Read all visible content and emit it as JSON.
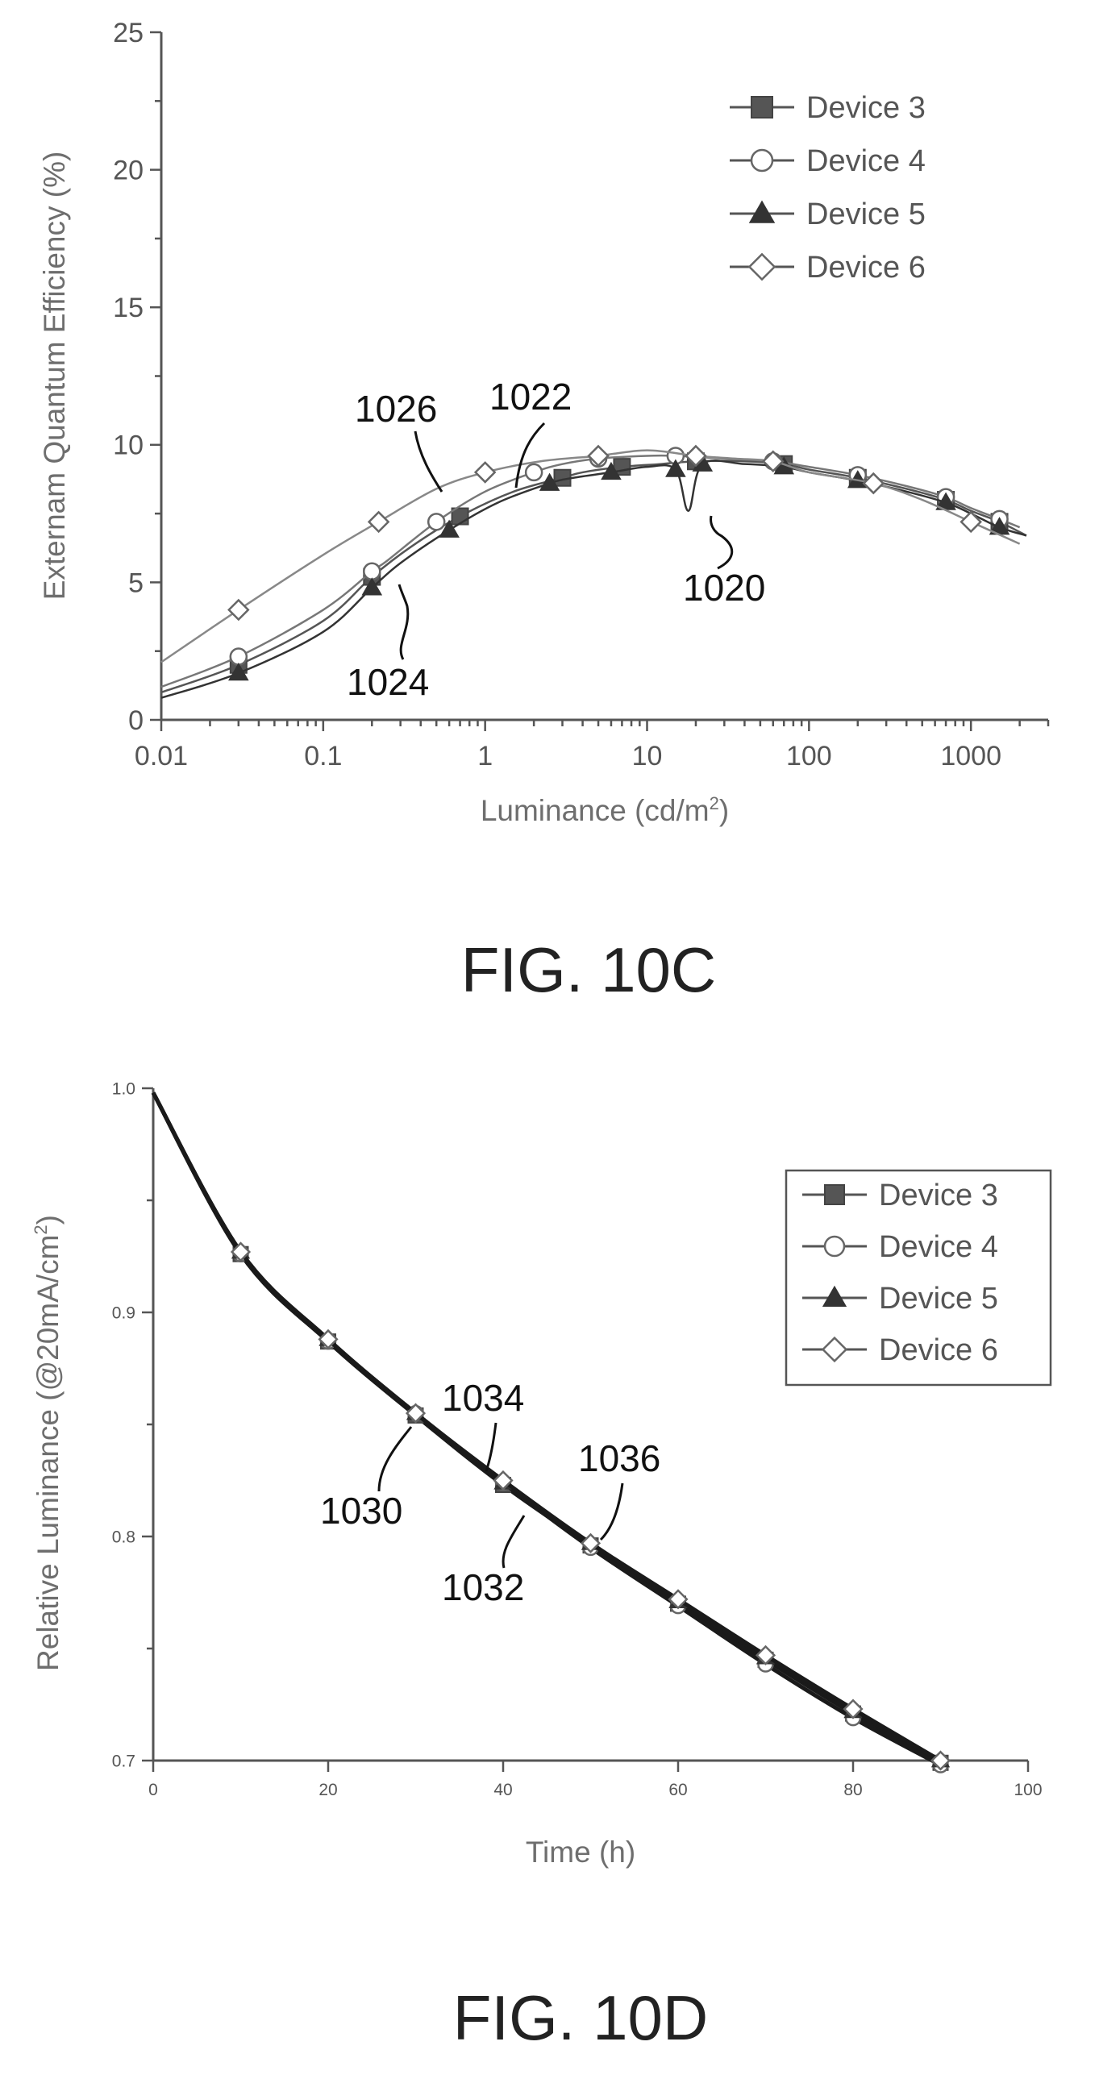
{
  "figures": [
    {
      "caption": "FIG. 10C",
      "chart_data": {
        "type": "line",
        "xlabel": "Luminance (cd/m",
        "xlabel_sup": "2",
        "xlabel_end": ")",
        "ylabel": "Externam Quantum Efficiency (%)",
        "x_scale": "log",
        "xlim": [
          0.01,
          3000
        ],
        "ylim": [
          0,
          25
        ],
        "x_ticks": [
          0.01,
          0.1,
          1,
          10,
          100,
          1000
        ],
        "x_tick_labels": [
          "0.01",
          "0.1",
          "1",
          "10",
          "100",
          "1000"
        ],
        "y_ticks": [
          0,
          5,
          10,
          15,
          20,
          25
        ],
        "y_tick_labels": [
          "0",
          "5",
          "10",
          "15",
          "20",
          "25"
        ],
        "legend_position": "top-right",
        "series": [
          {
            "name": "Device 3",
            "marker": "square-filled",
            "x": [
              0.01,
              0.03,
              0.1,
              0.2,
              0.35,
              0.7,
              1.5,
              3,
              4,
              7,
              12,
              20,
              40,
              70,
              100,
              200,
              400,
              700,
              1000,
              1500,
              2200
            ],
            "y": [
              1.0,
              2.0,
              3.6,
              5.2,
              6.3,
              7.4,
              8.3,
              8.8,
              9.0,
              9.2,
              9.3,
              9.4,
              9.4,
              9.3,
              9.1,
              8.8,
              8.4,
              8.0,
              7.6,
              7.2,
              6.7
            ]
          },
          {
            "name": "Device 4",
            "marker": "circle-open",
            "x": [
              0.01,
              0.03,
              0.1,
              0.2,
              0.25,
              0.5,
              1,
              2,
              3,
              5,
              10,
              15,
              30,
              60,
              100,
              200,
              400,
              700,
              1000,
              1500,
              2000
            ],
            "y": [
              1.2,
              2.3,
              4.0,
              5.4,
              5.8,
              7.2,
              8.3,
              9.0,
              9.3,
              9.5,
              9.6,
              9.6,
              9.5,
              9.4,
              9.2,
              8.9,
              8.5,
              8.1,
              7.7,
              7.3,
              7.0
            ]
          },
          {
            "name": "Device 5",
            "marker": "triangle-filled",
            "x": [
              0.01,
              0.03,
              0.1,
              0.2,
              0.3,
              0.6,
              1.2,
              2.5,
              3.5,
              6,
              10,
              15,
              18,
              22,
              40,
              70,
              100,
              200,
              400,
              700,
              1000,
              1500,
              2200
            ],
            "y": [
              0.8,
              1.7,
              3.2,
              4.8,
              5.7,
              6.9,
              7.9,
              8.6,
              8.8,
              9.0,
              9.2,
              9.1,
              7.6,
              9.3,
              9.3,
              9.2,
              9.0,
              8.7,
              8.3,
              7.9,
              7.5,
              7.0,
              6.7
            ]
          },
          {
            "name": "Device 6",
            "marker": "diamond-open",
            "x": [
              0.01,
              0.03,
              0.1,
              0.22,
              0.5,
              1,
              2.2,
              5,
              10,
              20,
              35,
              60,
              100,
              250,
              500,
              1000,
              2000
            ],
            "y": [
              2.1,
              4.0,
              6.0,
              7.2,
              8.4,
              9.0,
              9.4,
              9.6,
              9.8,
              9.6,
              9.5,
              9.4,
              9.0,
              8.6,
              8.0,
              7.2,
              6.4
            ]
          }
        ],
        "annotations": [
          "1026",
          "1022",
          "1020",
          "1024"
        ]
      }
    },
    {
      "caption": "FIG. 10D",
      "chart_data": {
        "type": "line",
        "xlabel": "Time (h)",
        "ylabel": "Relative Luminance (@20mA/cm",
        "ylabel_sup": "2",
        "ylabel_end": ")",
        "xlim": [
          0,
          100
        ],
        "ylim": [
          0.7,
          1.0
        ],
        "x_ticks": [
          0,
          20,
          40,
          60,
          80,
          100
        ],
        "x_tick_labels": [
          "0",
          "20",
          "40",
          "60",
          "80",
          "100"
        ],
        "y_ticks": [
          0.7,
          0.8,
          0.9,
          1.0
        ],
        "y_tick_labels": [
          "0.7",
          "0.8",
          "0.9",
          "1.0"
        ],
        "legend_position": "top-right",
        "series": [
          {
            "name": "Device 3",
            "marker": "square-filled",
            "x": [
              0,
              10,
              20,
              30,
              40,
              50,
              60,
              70,
              80,
              90
            ],
            "y": [
              0.998,
              0.926,
              0.887,
              0.854,
              0.823,
              0.796,
              0.77,
              0.745,
              0.721,
              0.699
            ]
          },
          {
            "name": "Device 4",
            "marker": "circle-open",
            "x": [
              0,
              10,
              20,
              30,
              40,
              50,
              60,
              70,
              80,
              90
            ],
            "y": [
              0.998,
              0.926,
              0.887,
              0.855,
              0.824,
              0.795,
              0.769,
              0.743,
              0.719,
              0.698
            ]
          },
          {
            "name": "Device 5",
            "marker": "triangle-filled",
            "x": [
              0,
              10,
              20,
              30,
              40,
              50,
              60,
              70,
              80,
              90
            ],
            "y": [
              0.998,
              0.927,
              0.888,
              0.855,
              0.824,
              0.797,
              0.771,
              0.746,
              0.722,
              0.7
            ]
          },
          {
            "name": "Device 6",
            "marker": "diamond-open",
            "x": [
              0,
              10,
              20,
              30,
              40,
              50,
              60,
              70,
              80,
              90
            ],
            "y": [
              0.998,
              0.927,
              0.888,
              0.855,
              0.825,
              0.797,
              0.772,
              0.747,
              0.723,
              0.7
            ]
          }
        ],
        "annotations": [
          "1034",
          "1036",
          "1030",
          "1032"
        ]
      }
    }
  ]
}
